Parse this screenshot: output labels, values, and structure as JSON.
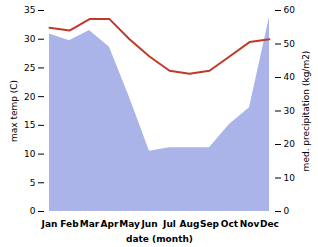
{
  "chart_data": {
    "type": "line",
    "categories": [
      "Jan",
      "Feb",
      "Mar",
      "Apr",
      "May",
      "Jun",
      "Jul",
      "Aug",
      "Sep",
      "Oct",
      "Nov",
      "Dec"
    ],
    "xlabel": "date (month)",
    "ylabel": "max temp (C)",
    "y2label": "med. precipitation (kg/m2)",
    "series": [
      {
        "type": "area",
        "axis": "y2",
        "color": "#aab4e8",
        "values": [
          53,
          51,
          54,
          49,
          34,
          18,
          19,
          19,
          19,
          26,
          31,
          58
        ]
      },
      {
        "type": "line",
        "color": "#c0392b",
        "values": [
          32.0,
          31.5,
          33.5,
          33.5,
          30.0,
          27.0,
          24.5,
          24.0,
          24.5,
          27.0,
          29.5,
          30.0
        ]
      }
    ],
    "ylim": [
      0,
      35
    ],
    "yticks": [
      0,
      5,
      10,
      15,
      20,
      25,
      30,
      35
    ],
    "y2lim": [
      0,
      60
    ],
    "y2ticks": [
      0,
      10,
      20,
      30,
      40,
      50,
      60
    ]
  }
}
